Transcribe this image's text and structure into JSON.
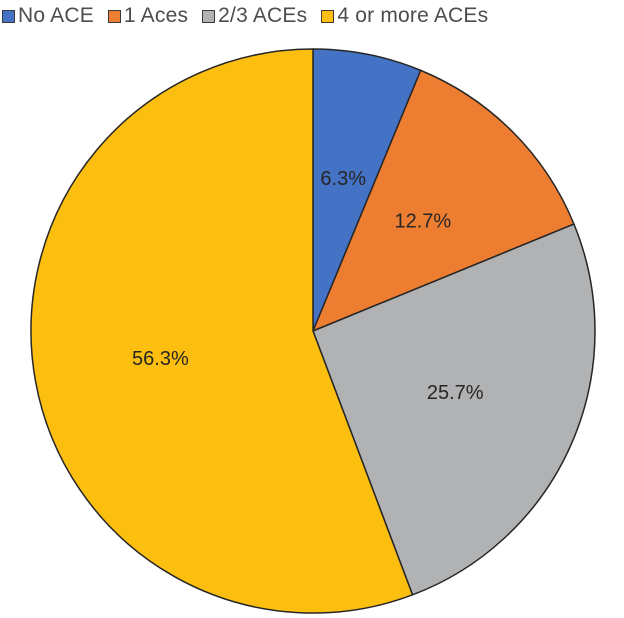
{
  "chart_data": {
    "type": "pie",
    "legend_position": "top",
    "categories": [
      "No ACE",
      "1 Aces",
      "2/3 ACEs",
      "4 or more ACEs"
    ],
    "values": [
      6.3,
      12.7,
      25.7,
      56.3
    ],
    "labels": [
      "6.3%",
      "12.7%",
      "25.7%",
      "56.3%"
    ],
    "colors": [
      "#4472c4",
      "#ed7d31",
      "#b1b2b4",
      "#fdbf0f"
    ],
    "start_angle_deg": 0,
    "direction": "clockwise"
  }
}
